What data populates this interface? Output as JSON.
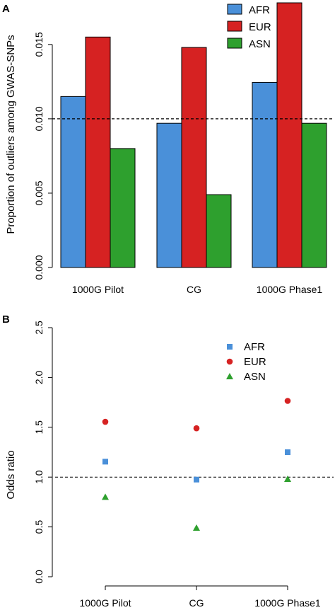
{
  "colors": {
    "AFR": "#4a90d9",
    "EUR": "#d62222",
    "ASN": "#2ea02e"
  },
  "chart_data": [
    {
      "panel": "A",
      "type": "bar",
      "ylabel": "Proportion of outliers among GWAS-SNPs",
      "categories": [
        "1000G Pilot",
        "CG",
        "1000G Phase1"
      ],
      "series": [
        {
          "name": "AFR",
          "values": [
            0.0115,
            0.0097,
            0.01245
          ]
        },
        {
          "name": "EUR",
          "values": [
            0.0155,
            0.0148,
            0.0178
          ]
        },
        {
          "name": "ASN",
          "values": [
            0.008,
            0.0049,
            0.0097
          ]
        }
      ],
      "ylim": [
        0,
        0.0178
      ],
      "yticks": [
        "0.000",
        "0.005",
        "0.010",
        "0.015"
      ],
      "yticks_values": [
        0,
        0.005,
        0.01,
        0.015
      ],
      "reference_line": 0.01,
      "legend": "top-right"
    },
    {
      "panel": "B",
      "type": "scatter",
      "ylabel": "Odds ratio",
      "categories": [
        "1000G Pilot",
        "CG",
        "1000G Phase1"
      ],
      "series": [
        {
          "name": "AFR",
          "marker": "square",
          "values": [
            1.155,
            0.975,
            1.25
          ]
        },
        {
          "name": "EUR",
          "marker": "circle",
          "values": [
            1.555,
            1.49,
            1.765
          ]
        },
        {
          "name": "ASN",
          "marker": "triangle",
          "values": [
            0.8,
            0.49,
            0.98
          ]
        }
      ],
      "ylim": [
        0,
        2.5
      ],
      "yticks": [
        "0.0",
        "0.5",
        "1.0",
        "1.5",
        "2.0",
        "2.5"
      ],
      "yticks_values": [
        0,
        0.5,
        1,
        1.5,
        2,
        2.5
      ],
      "reference_line": 1.0,
      "legend": "top-right"
    }
  ]
}
